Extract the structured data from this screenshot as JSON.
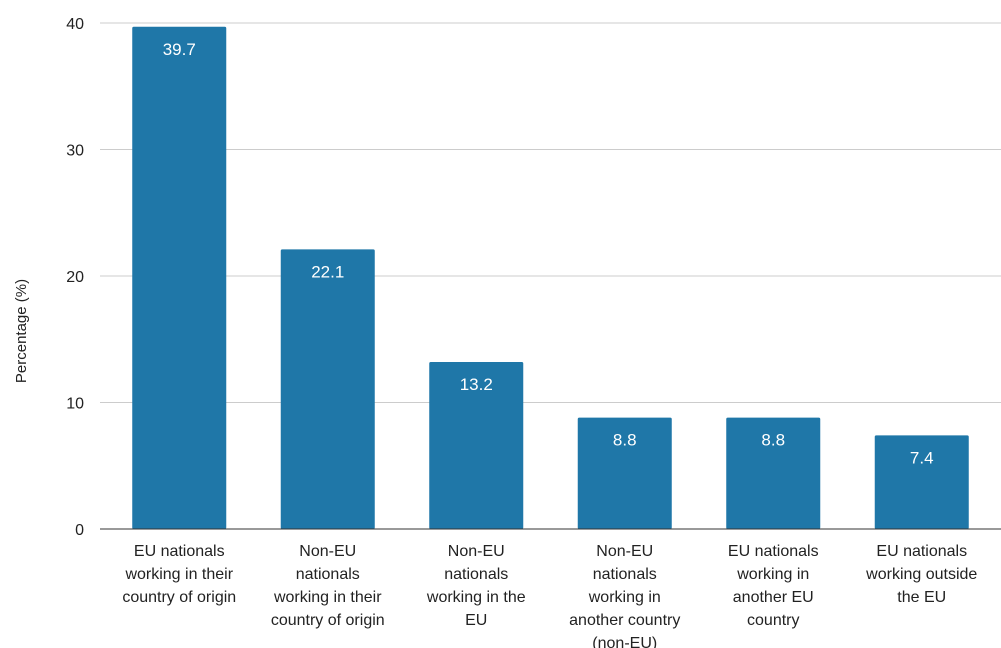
{
  "chart_data": {
    "type": "bar",
    "title": "",
    "xlabel": "",
    "ylabel": "Percentage (%)",
    "ylim": [
      0,
      40
    ],
    "yticks": [
      0,
      10,
      20,
      30,
      40
    ],
    "grid": true,
    "legend": "none",
    "bar_color": "#1f77a8",
    "categories": [
      [
        "EU nationals",
        "working in their",
        "country of origin"
      ],
      [
        "Non-EU",
        "nationals",
        "working in their",
        "country of origin"
      ],
      [
        "Non-EU",
        "nationals",
        "working in the",
        "EU"
      ],
      [
        "Non-EU",
        "nationals",
        "working in",
        "another country",
        "(non-EU)"
      ],
      [
        "EU nationals",
        "working in",
        "another EU",
        "country"
      ],
      [
        "EU nationals",
        "working outside",
        "the EU"
      ]
    ],
    "values": [
      39.7,
      22.1,
      13.2,
      8.8,
      8.8,
      7.4
    ],
    "data_labels": [
      "39.7",
      "22.1",
      "13.2",
      "8.8",
      "8.8",
      "7.4"
    ]
  }
}
